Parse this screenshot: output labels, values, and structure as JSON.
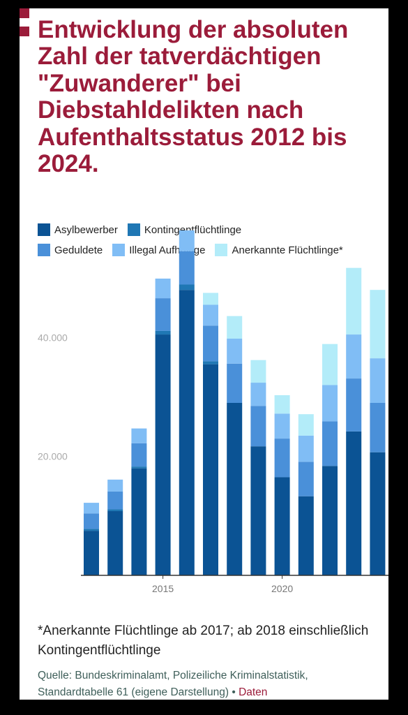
{
  "title": "Entwicklung der absoluten Zahl der tatverdächtigen \"Zuwanderer\" bei Diebstahldelikten nach Aufenthaltsstatus 2012 bis 2024.",
  "footnote": "*Anerkannte Flüchtlinge ab 2017; ab 2018 einschließlich Kontingentflüchtlinge",
  "source": {
    "text": "Quelle: Bundeskriminalamt, Polizeiliche Kriminalstatistik, Standardtabelle 61 (eigene Darstellung)",
    "separator": " • ",
    "link": "Daten"
  },
  "colors": {
    "accent": "#9b1c3a",
    "series": [
      "#0b5394",
      "#1f77b4",
      "#4a90d9",
      "#80bdf5",
      "#b3ecf9"
    ]
  },
  "chart_data": {
    "type": "bar",
    "stacked": true,
    "x": [
      2012,
      2013,
      2014,
      2015,
      2016,
      2017,
      2018,
      2019,
      2020,
      2021,
      2022,
      2023,
      2024
    ],
    "series": [
      {
        "name": "Asylbewerber",
        "values": [
          7500,
          10800,
          18000,
          40500,
          48000,
          35500,
          29000,
          21700,
          16500,
          13300,
          18400,
          24200,
          20700
        ]
      },
      {
        "name": "Kontingentflüchtlinge",
        "values": [
          300,
          300,
          300,
          600,
          900,
          500,
          0,
          0,
          0,
          0,
          0,
          0,
          0
        ]
      },
      {
        "name": "Geduldete",
        "values": [
          2600,
          3000,
          3900,
          5500,
          5600,
          6000,
          6600,
          6800,
          6500,
          5800,
          7500,
          8900,
          8300
        ]
      },
      {
        "name": "Illegal Aufhältige",
        "values": [
          1800,
          2000,
          2500,
          3300,
          3500,
          3500,
          4200,
          3900,
          4200,
          4400,
          6100,
          7400,
          7500
        ]
      },
      {
        "name": "Anerkannte Flüchtlinge*",
        "values": [
          0,
          0,
          0,
          0,
          0,
          2000,
          3800,
          3800,
          3100,
          3600,
          6900,
          11200,
          11500
        ]
      }
    ],
    "yticks": [
      20000,
      40000
    ],
    "ytick_labels": [
      "20.000",
      "40.000"
    ],
    "xticks": [
      2015,
      2020
    ],
    "xtick_labels": [
      "2015",
      "2020"
    ],
    "ylim": [
      0,
      58000
    ],
    "grid": false,
    "legend_position": "top"
  }
}
